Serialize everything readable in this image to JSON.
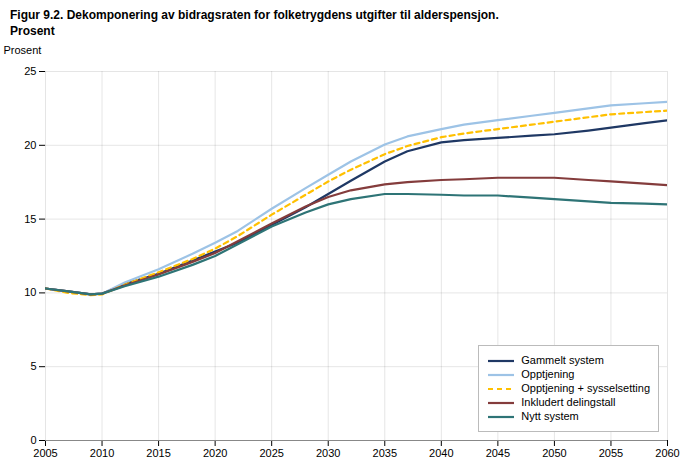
{
  "chart_data": {
    "type": "line",
    "title": "Figur 9.2. Dekomponering av bidragsraten for folketrygdens utgifter til alderspensjon.",
    "subtitle": "Prosent",
    "ylabel": "Prosent",
    "x": [
      2005,
      2007,
      2009,
      2010,
      2012,
      2015,
      2018,
      2020,
      2022,
      2025,
      2028,
      2030,
      2032,
      2035,
      2037,
      2040,
      2042,
      2045,
      2048,
      2050,
      2053,
      2055,
      2058,
      2060
    ],
    "xlim": [
      2005,
      2060
    ],
    "ylim": [
      0,
      25
    ],
    "xticks": [
      2005,
      2010,
      2015,
      2020,
      2025,
      2030,
      2035,
      2040,
      2045,
      2050,
      2055,
      2060
    ],
    "yticks": [
      0,
      5,
      10,
      15,
      20,
      25
    ],
    "grid": true,
    "legend": "lower right",
    "series": [
      {
        "name": "Gammelt system",
        "color": "#1f3864",
        "line_style": "solid",
        "values": [
          10.3,
          10.1,
          9.9,
          9.95,
          10.6,
          11.3,
          12.2,
          12.8,
          13.4,
          14.6,
          15.8,
          16.7,
          17.6,
          18.9,
          19.6,
          20.2,
          20.35,
          20.5,
          20.65,
          20.75,
          21.0,
          21.2,
          21.5,
          21.7
        ]
      },
      {
        "name": "Opptjening",
        "color": "#9dc3e6",
        "line_style": "solid",
        "values": [
          10.3,
          10.1,
          9.9,
          9.95,
          10.7,
          11.6,
          12.65,
          13.4,
          14.2,
          15.7,
          17.1,
          18.0,
          18.9,
          20.05,
          20.6,
          21.1,
          21.4,
          21.7,
          22.0,
          22.2,
          22.5,
          22.7,
          22.85,
          22.95
        ]
      },
      {
        "name": "Opptjening + sysselsetting",
        "color": "#ffc000",
        "line_style": "dashed",
        "values": [
          10.3,
          10.0,
          9.85,
          9.9,
          10.55,
          11.4,
          12.3,
          13.0,
          13.85,
          15.3,
          16.65,
          17.55,
          18.35,
          19.4,
          19.95,
          20.55,
          20.8,
          21.1,
          21.4,
          21.6,
          21.9,
          22.1,
          22.25,
          22.35
        ]
      },
      {
        "name": "Inkludert delingstall",
        "color": "#843c3c",
        "line_style": "solid",
        "values": [
          10.3,
          10.1,
          9.9,
          9.95,
          10.5,
          11.25,
          12.1,
          12.7,
          13.5,
          14.7,
          15.85,
          16.5,
          16.95,
          17.35,
          17.5,
          17.65,
          17.7,
          17.8,
          17.8,
          17.8,
          17.65,
          17.55,
          17.4,
          17.3
        ]
      },
      {
        "name": "Nytt system",
        "color": "#2e7476",
        "line_style": "solid",
        "values": [
          10.3,
          10.1,
          9.9,
          9.95,
          10.45,
          11.1,
          11.9,
          12.5,
          13.3,
          14.5,
          15.45,
          16.0,
          16.35,
          16.7,
          16.7,
          16.65,
          16.6,
          16.6,
          16.45,
          16.35,
          16.2,
          16.1,
          16.05,
          16.0
        ]
      }
    ]
  }
}
